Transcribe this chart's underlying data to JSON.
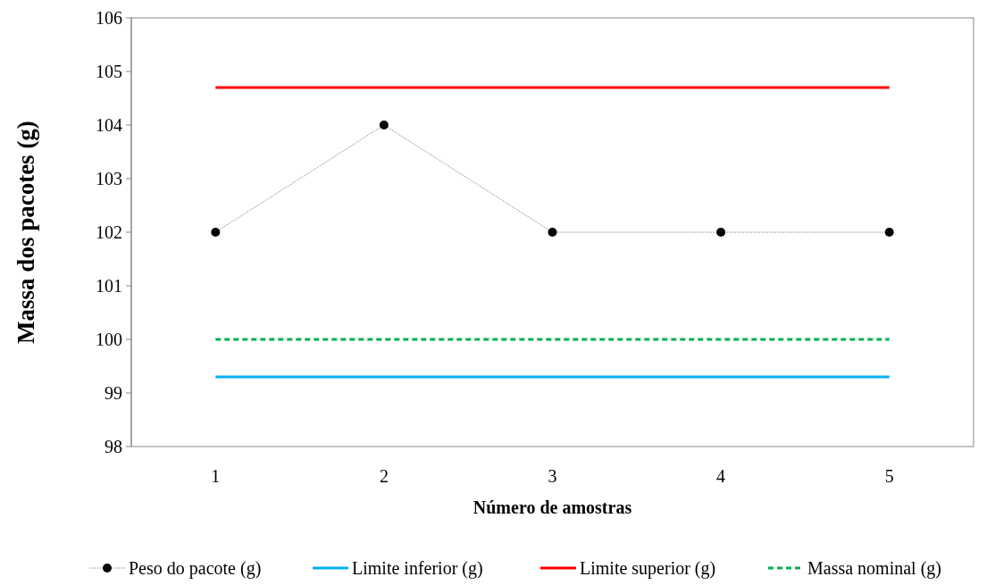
{
  "chart_data": {
    "type": "line",
    "xlabel": "Número de amostras",
    "ylabel": "Massa dos pacotes (g)",
    "categories": [
      "1",
      "2",
      "3",
      "4",
      "5"
    ],
    "ylim": [
      98,
      106
    ],
    "yticks": [
      98,
      99,
      100,
      101,
      102,
      103,
      104,
      105,
      106
    ],
    "grid": false,
    "legend": "bottom",
    "series": [
      {
        "name": "Peso do pacote  (g)",
        "color": "#000000",
        "values": [
          102,
          104,
          102,
          102,
          102
        ],
        "marker": "circle",
        "line_style": "dotted"
      },
      {
        "name": "Limite inferior  (g)",
        "color": "#00b0f0",
        "values": [
          99.3,
          99.3,
          99.3,
          99.3,
          99.3
        ],
        "marker": "none",
        "line_style": "solid"
      },
      {
        "name": "Limite superior (g)",
        "color": "#ff0000",
        "values": [
          104.7,
          104.7,
          104.7,
          104.7,
          104.7
        ],
        "marker": "none",
        "line_style": "solid"
      },
      {
        "name": "Massa nominal (g)",
        "color": "#00b050",
        "values": [
          100,
          100,
          100,
          100,
          100
        ],
        "marker": "none",
        "line_style": "dashed"
      }
    ]
  }
}
